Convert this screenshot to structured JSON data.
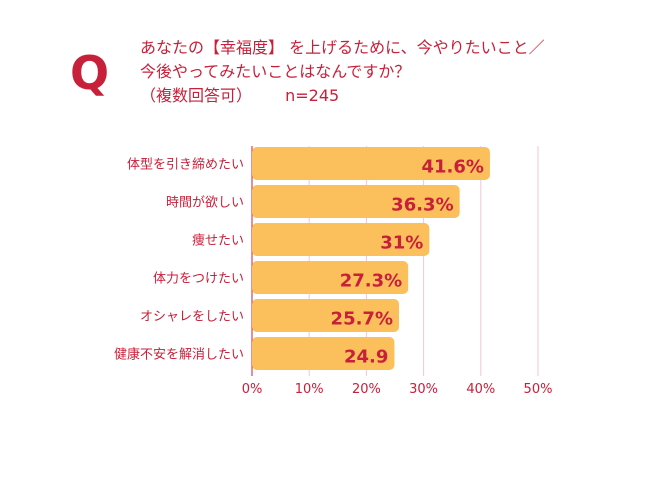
{
  "header": {
    "q_mark": "Q",
    "question_line1": "あなたの【幸福度】 を上げるために、今やりたいこと／",
    "question_line2": "今後やってみたいことはなんですか？",
    "question_note": "（複数回答可）",
    "sample_size": "n=245"
  },
  "colors": {
    "bar": "#fbbf5c",
    "accent": "#c8203a",
    "grid": "#f4c7cd"
  },
  "chart_data": {
    "type": "bar",
    "orientation": "horizontal",
    "categories": [
      "体型を引き締めたい",
      "時間が欲しい",
      "痩せたい",
      "体力をつけたい",
      "オシャレをしたい",
      "健康不安を解消したい"
    ],
    "values": [
      41.6,
      36.3,
      31,
      27.3,
      25.7,
      24.9
    ],
    "value_labels": [
      "41.6%",
      "36.3%",
      "31%",
      "27.3%",
      "25.7%",
      "24.9"
    ],
    "x_ticks": [
      "0%",
      "10%",
      "20%",
      "30%",
      "40%",
      "50%"
    ],
    "xlim": [
      0,
      50
    ],
    "grid": true
  }
}
